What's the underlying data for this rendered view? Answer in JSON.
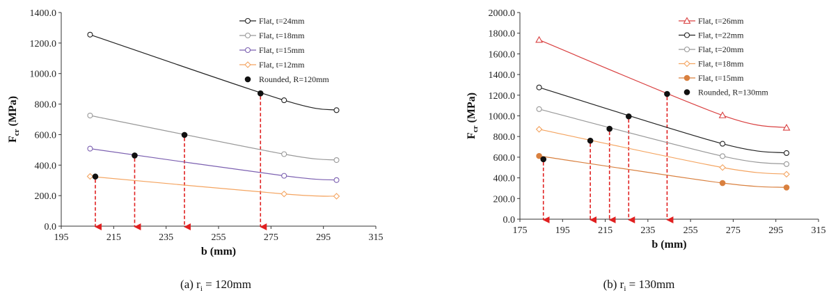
{
  "chart_data": [
    {
      "type": "line",
      "xlabel": "b (mm)",
      "ylabel_main": "F",
      "ylabel_sub": "cr",
      "ylabel_unit": "(MPa)",
      "xlim": [
        195,
        315
      ],
      "ylim": [
        0,
        1400
      ],
      "xticks": [
        195,
        215,
        235,
        255,
        275,
        295,
        315
      ],
      "yticks": [
        0,
        200,
        400,
        600,
        800,
        1000,
        1200,
        1400
      ],
      "ytick_labels": [
        "0.0",
        "200.0",
        "400.0",
        "600.0",
        "800.0",
        "1000.0",
        "1200.0",
        "1400.0"
      ],
      "legend_position": "top-right",
      "series": [
        {
          "name": "Flat, t=24mm",
          "color": "#222222",
          "marker": "circle-open",
          "x": [
            206,
            280,
            300
          ],
          "y": [
            1255,
            825,
            760
          ]
        },
        {
          "name": "Flat, t=18mm",
          "color": "#999999",
          "marker": "circle-open",
          "x": [
            206,
            280,
            300
          ],
          "y": [
            725,
            472,
            433
          ]
        },
        {
          "name": "Flat, t=15mm",
          "color": "#7b5fb0",
          "marker": "circle-open",
          "x": [
            206,
            280,
            300
          ],
          "y": [
            508,
            330,
            302
          ]
        },
        {
          "name": "Flat, t=12mm",
          "color": "#f4a460",
          "marker": "diamond-open",
          "x": [
            206,
            280,
            300
          ],
          "y": [
            326,
            211,
            196
          ]
        }
      ],
      "rounded": {
        "name": "Rounded, R=120mm",
        "color": "#111111",
        "marker": "circle-filled",
        "x": [
          208,
          223,
          242,
          271
        ],
        "y": [
          325,
          463,
          598,
          870
        ]
      },
      "arrow_color": "#e02020",
      "caption_prefix": "(a)  r",
      "caption_sub": "i",
      "caption_suffix": "  =  120mm"
    },
    {
      "type": "line",
      "xlabel": "b (mm)",
      "ylabel_main": "F",
      "ylabel_sub": "cr",
      "ylabel_unit": "(MPa)",
      "xlim": [
        175,
        315
      ],
      "ylim": [
        0,
        2000
      ],
      "xticks": [
        175,
        195,
        215,
        235,
        255,
        275,
        295,
        315
      ],
      "yticks": [
        0,
        200,
        400,
        600,
        800,
        1000,
        1200,
        1400,
        1600,
        1800,
        2000
      ],
      "ytick_labels": [
        "0.0",
        "200.0",
        "400.0",
        "600.0",
        "800.0",
        "1000.0",
        "1200.0",
        "1400.0",
        "1600.0",
        "1800.0",
        "2000.0"
      ],
      "legend_position": "top-right",
      "series": [
        {
          "name": "Flat, t=26mm",
          "color": "#d94040",
          "marker": "triangle-open",
          "x": [
            184,
            270,
            300
          ],
          "y": [
            1735,
            1005,
            885
          ]
        },
        {
          "name": "Flat, t=22mm",
          "color": "#222222",
          "marker": "circle-open",
          "x": [
            184,
            270,
            300
          ],
          "y": [
            1275,
            730,
            640
          ]
        },
        {
          "name": "Flat, t=20mm",
          "color": "#999999",
          "marker": "circle-open",
          "x": [
            184,
            270,
            300
          ],
          "y": [
            1065,
            610,
            533
          ]
        },
        {
          "name": "Flat, t=18mm",
          "color": "#f4a460",
          "marker": "diamond-open",
          "x": [
            184,
            270,
            300
          ],
          "y": [
            870,
            500,
            435
          ]
        },
        {
          "name": "Flat, t=15mm",
          "color": "#d9803f",
          "marker": "circle-filled",
          "x": [
            184,
            270,
            300
          ],
          "y": [
            612,
            350,
            307
          ]
        }
      ],
      "rounded": {
        "name": "Rounded, R=130mm",
        "color": "#111111",
        "marker": "circle-filled",
        "x": [
          186,
          208,
          217,
          226,
          244
        ],
        "y": [
          580,
          760,
          875,
          995,
          1212
        ]
      },
      "arrow_color": "#e02020",
      "caption_prefix": "(b)  r",
      "caption_sub": "i",
      "caption_suffix": "  =  130mm"
    }
  ]
}
